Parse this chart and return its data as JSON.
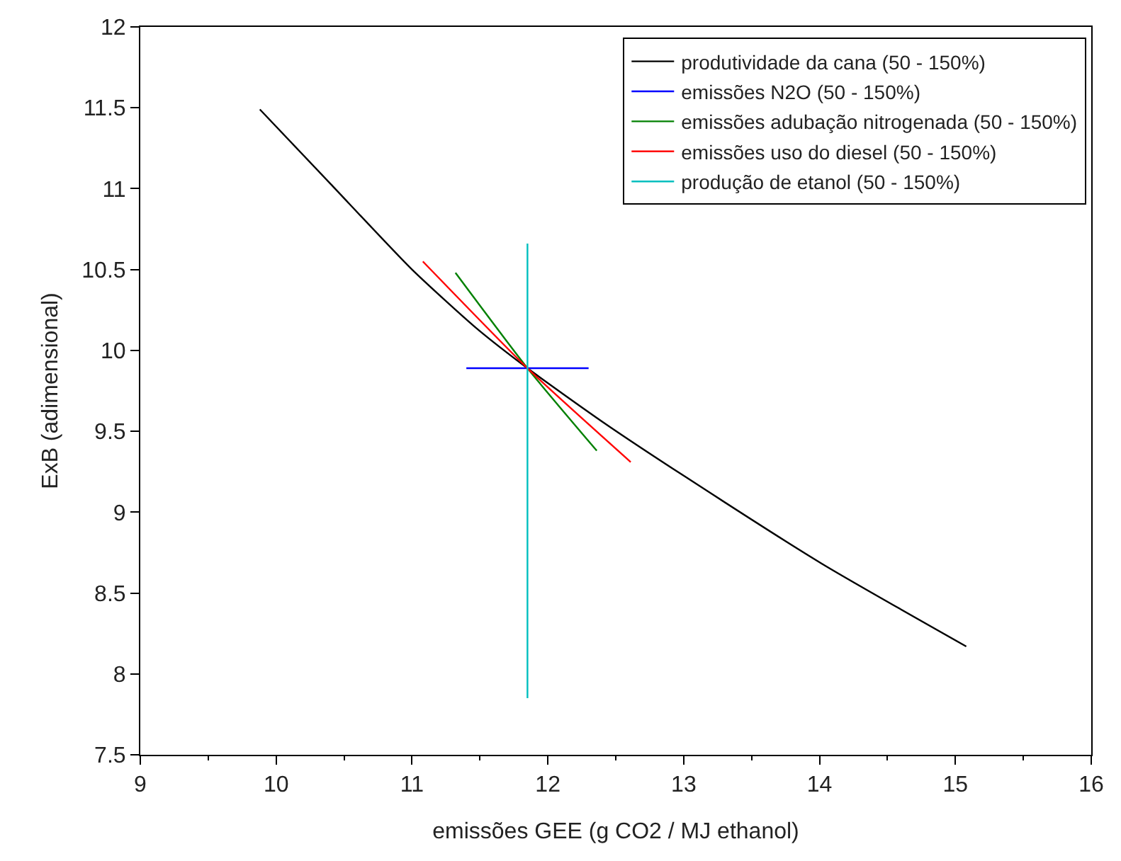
{
  "chart_data": {
    "type": "line",
    "xlabel": "emissões GEE (g CO2 / MJ ethanol)",
    "ylabel": "ExB (adimensional)",
    "xlim": [
      9,
      16
    ],
    "xticks": [
      9,
      10,
      11,
      12,
      13,
      14,
      15,
      16
    ],
    "ylim": [
      7.5,
      12
    ],
    "yticks": [
      7.5,
      8,
      8.5,
      9,
      9.5,
      10,
      10.5,
      11,
      11.5,
      12
    ],
    "legend": "top right",
    "marker": "none",
    "line_style": "solid",
    "series": [
      {
        "name": "produtividade da cana (50 - 150%)",
        "color": "#000000",
        "x": [
          9.88,
          10.4,
          11.0,
          11.47,
          11.85,
          12.4,
          13.01,
          14.02,
          15.08
        ],
        "values": [
          11.49,
          11.03,
          10.5,
          10.14,
          9.89,
          9.56,
          9.22,
          8.68,
          8.17
        ]
      },
      {
        "name": "emissões N2O (50 - 150%)",
        "color": "#0000ff",
        "x": [
          11.4,
          11.85,
          12.3
        ],
        "values": [
          9.89,
          9.89,
          9.89
        ]
      },
      {
        "name": "emissões adubação nitrogenada (50 - 150%)",
        "color": "#008000",
        "x": [
          11.32,
          11.85,
          12.36
        ],
        "values": [
          10.48,
          9.89,
          9.38
        ]
      },
      {
        "name": "emissões uso do diesel (50 - 150%)",
        "color": "#ff0000",
        "x": [
          11.08,
          11.85,
          12.61
        ],
        "values": [
          10.55,
          9.89,
          9.31
        ]
      },
      {
        "name": "produção de etanol (50 - 150%)",
        "color": "#00bfbf",
        "x": [
          11.85,
          11.85,
          11.85
        ],
        "values": [
          7.85,
          9.89,
          10.66
        ]
      }
    ]
  }
}
